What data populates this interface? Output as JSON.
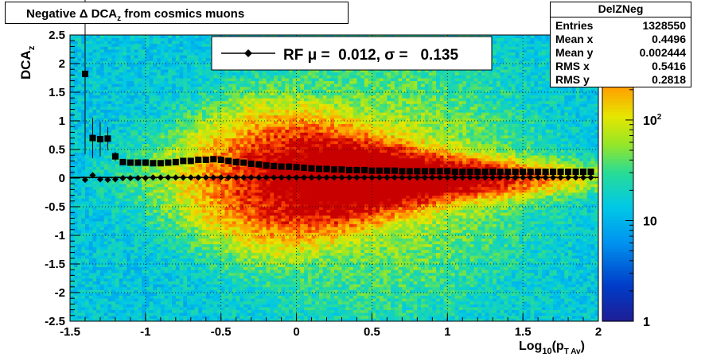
{
  "chart_data": {
    "type": "heatmap",
    "title": "Negative Δ DCA_z from cosmics muons",
    "xlabel": "Log_10(p_T Av)",
    "ylabel": "DCA_z",
    "xlim": [
      -1.5,
      2.0
    ],
    "ylim": [
      -2.5,
      2.5
    ],
    "x_ticks": [
      "-1.5",
      "-1",
      "-0.5",
      "0",
      "0.5",
      "1",
      "1.5",
      "2"
    ],
    "y_ticks": [
      "-2.5",
      "-2",
      "-1.5",
      "-1",
      "-0.5",
      "0",
      "0.5",
      "1",
      "1.5",
      "2",
      "2.5"
    ],
    "colorbar": {
      "scale": "log",
      "range": [
        1,
        700
      ],
      "ticks": [
        "1",
        "10",
        "10^2"
      ]
    },
    "grid": true,
    "legend": {
      "placement": "top-center",
      "entries": [
        {
          "label": "RF μ =  0.012, σ =   0.135",
          "marker": "diamond",
          "color": "#000000"
        }
      ]
    },
    "stats": {
      "name": "DelZNeg",
      "rows": [
        {
          "key": "Entries",
          "value": "1328550"
        },
        {
          "key": "Mean x",
          "value": "0.4496"
        },
        {
          "key": "Mean y",
          "value": "0.002444"
        },
        {
          "key": "RMS x",
          "value": "0.5416"
        },
        {
          "key": "RMS y",
          "value": "0.2818"
        }
      ]
    },
    "fit_line": {
      "y": 0.012,
      "color": "#000000"
    },
    "series": [
      {
        "marker": "square",
        "x": [
          -1.4,
          -1.35,
          -1.3,
          -1.25,
          -1.2,
          -1.15,
          -1.1,
          -1.05,
          -1.0,
          -0.95,
          -0.9,
          -0.85,
          -0.8,
          -0.75,
          -0.7,
          -0.65,
          -0.6,
          -0.55,
          -0.5,
          -0.45,
          -0.4,
          -0.35,
          -0.3,
          -0.25,
          -0.2,
          -0.15,
          -0.1,
          -0.05,
          0.0,
          0.05,
          0.1,
          0.15,
          0.2,
          0.25,
          0.3,
          0.35,
          0.4,
          0.45,
          0.5,
          0.55,
          0.6,
          0.65,
          0.7,
          0.75,
          0.8,
          0.85,
          0.9,
          0.95,
          1.0,
          1.05,
          1.1,
          1.15,
          1.2,
          1.25,
          1.3,
          1.35,
          1.4,
          1.45,
          1.5,
          1.55,
          1.6,
          1.65,
          1.7,
          1.75,
          1.8,
          1.85,
          1.9,
          1.95
        ],
        "y": [
          1.82,
          0.7,
          0.68,
          0.69,
          0.38,
          0.28,
          0.27,
          0.27,
          0.27,
          0.26,
          0.26,
          0.27,
          0.28,
          0.3,
          0.3,
          0.32,
          0.32,
          0.33,
          0.32,
          0.3,
          0.28,
          0.27,
          0.25,
          0.24,
          0.22,
          0.21,
          0.2,
          0.2,
          0.19,
          0.18,
          0.17,
          0.16,
          0.16,
          0.15,
          0.15,
          0.14,
          0.14,
          0.14,
          0.13,
          0.13,
          0.13,
          0.13,
          0.12,
          0.12,
          0.12,
          0.12,
          0.12,
          0.12,
          0.12,
          0.11,
          0.11,
          0.11,
          0.11,
          0.11,
          0.11,
          0.11,
          0.11,
          0.11,
          0.11,
          0.11,
          0.11,
          0.11,
          0.11,
          0.11,
          0.11,
          0.11,
          0.11,
          0.11
        ],
        "err": [
          1.4,
          0.35,
          0.3,
          0.2,
          0.08,
          0.05,
          0.04,
          0.03,
          0.03,
          0.02,
          0.02,
          0.02,
          0.02,
          0.02,
          0.02,
          0.02,
          0.02,
          0.01,
          0.01,
          0.01,
          0.01,
          0.01,
          0.01,
          0.01,
          0.01,
          0.01,
          0.01,
          0.01,
          0.01,
          0.01,
          0.01,
          0.01,
          0.01,
          0.01,
          0.01,
          0.01,
          0.01,
          0.01,
          0.01,
          0.01,
          0.01,
          0.01,
          0.01,
          0.01,
          0.01,
          0.01,
          0.01,
          0.01,
          0.01,
          0.01,
          0.01,
          0.01,
          0.01,
          0.01,
          0.01,
          0.01,
          0.01,
          0.01,
          0.01,
          0.01,
          0.01,
          0.01,
          0.01,
          0.01,
          0.01,
          0.01,
          0.01,
          0.01
        ]
      },
      {
        "marker": "diamond",
        "x": [
          -1.4,
          -1.35,
          -1.3,
          -1.25,
          -1.2,
          -1.15,
          -1.1,
          -1.05,
          -1.0,
          -0.95,
          -0.9,
          -0.85,
          -0.8,
          -0.75,
          -0.7,
          -0.65,
          -0.6,
          -0.55,
          -0.5,
          -0.45,
          -0.4,
          -0.35,
          -0.3,
          -0.25,
          -0.2,
          -0.15,
          -0.1,
          -0.05,
          0.0,
          0.05,
          0.1,
          0.15,
          0.2,
          0.25,
          0.3,
          0.35,
          0.4,
          0.45,
          0.5,
          0.55,
          0.6,
          0.65,
          0.7,
          0.75,
          0.8,
          0.85,
          0.9,
          0.95,
          1.0,
          1.05,
          1.1,
          1.15,
          1.2,
          1.25,
          1.3,
          1.35,
          1.4,
          1.45,
          1.5,
          1.55,
          1.6,
          1.65,
          1.7,
          1.75,
          1.8,
          1.85,
          1.9,
          1.95
        ],
        "y": [
          -0.03,
          0.05,
          -0.02,
          -0.03,
          -0.02,
          0.0,
          0.0,
          0.0,
          0.0,
          0.01,
          0.01,
          0.01,
          0.01,
          0.01,
          0.01,
          0.01,
          0.01,
          0.01,
          0.01,
          0.01,
          0.01,
          0.01,
          0.01,
          0.01,
          0.01,
          0.01,
          0.01,
          0.01,
          0.01,
          0.01,
          0.01,
          0.01,
          0.01,
          0.01,
          0.01,
          0.01,
          0.01,
          0.01,
          0.01,
          0.01,
          0.01,
          0.01,
          0.01,
          0.01,
          0.01,
          0.01,
          0.01,
          0.01,
          0.01,
          0.01,
          0.01,
          0.01,
          0.01,
          0.01,
          0.01,
          0.01,
          0.01,
          0.01,
          0.01,
          0.01,
          0.01,
          0.01,
          0.01,
          0.01,
          0.01,
          0.01,
          0.01,
          0.01
        ]
      }
    ]
  }
}
